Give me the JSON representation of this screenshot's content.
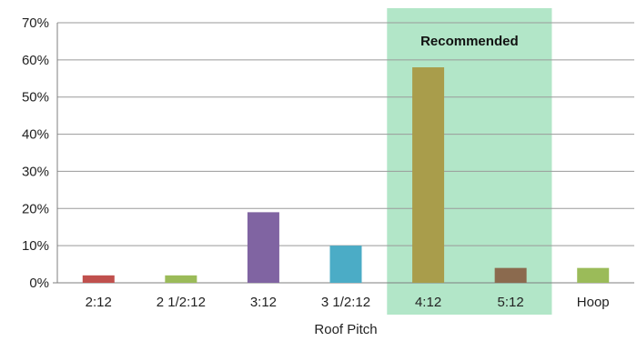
{
  "chart_data": {
    "type": "bar",
    "title": "",
    "xlabel": "Roof Pitch",
    "ylabel": "",
    "categories": [
      "2:12",
      "2 1/2:12",
      "3:12",
      "3 1/2:12",
      "4:12",
      "5:12",
      "Hoop"
    ],
    "values": [
      0.02,
      0.02,
      0.19,
      0.1,
      0.58,
      0.04,
      0.04
    ],
    "bar_colors": [
      "#c0504d",
      "#9bbb59",
      "#8064a2",
      "#4bacc6",
      "#a99d4b",
      "#8b6a4e",
      "#9bbb59"
    ],
    "ylim": [
      0,
      0.7
    ],
    "yticks": [
      {
        "value": 0,
        "label": "0%"
      },
      {
        "value": 0.1,
        "label": "10%"
      },
      {
        "value": 0.2,
        "label": "20%"
      },
      {
        "value": 0.3,
        "label": "30%"
      },
      {
        "value": 0.4,
        "label": "40%"
      },
      {
        "value": 0.5,
        "label": "50%"
      },
      {
        "value": 0.6,
        "label": "60%"
      },
      {
        "value": 0.7,
        "label": "70%"
      }
    ],
    "grid": true,
    "legend": "none",
    "highlight": {
      "label": "Recommended",
      "categories": [
        "4:12",
        "5:12"
      ],
      "color": "#b2e6c8"
    }
  }
}
